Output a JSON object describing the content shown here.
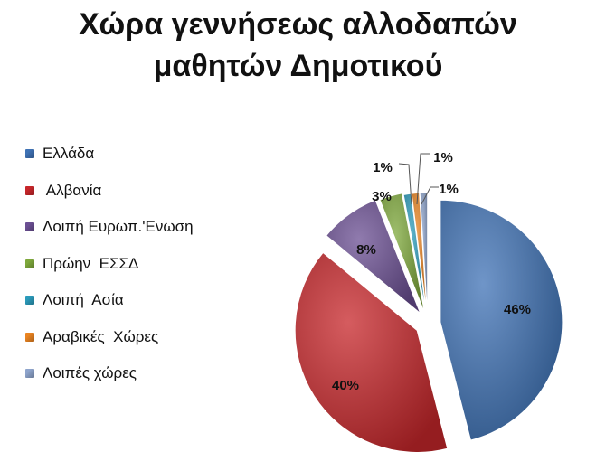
{
  "title_line1": "Χώρα γεννήσεως αλλοδαπών",
  "title_line2": "μαθητών Δημοτικού",
  "chart_data": {
    "type": "pie",
    "title": "Χώρα γεννήσεως αλλοδαπών μαθητών Δημοτικού",
    "legend_position": "left",
    "slices": [
      {
        "label": "Ελλάδα",
        "value": 46,
        "display": "46%",
        "color": "#3f72b5"
      },
      {
        "label": " Αλβανία",
        "value": 40,
        "display": "40%",
        "color": "#c7262a"
      },
      {
        "label": "Λοιπή Ευρωπ.'Ενωση",
        "value": 8,
        "display": "8%",
        "color": "#6b4f93"
      },
      {
        "label": "Πρώην  ΕΣΣΔ",
        "value": 3,
        "display": "3%",
        "color": "#7ea83b"
      },
      {
        "label": "Λοιπή  Ασία",
        "value": 1,
        "display": "1%",
        "color": "#2b9bbb"
      },
      {
        "label": "Αραβικές  Χώρες",
        "value": 1,
        "display": "1%",
        "color": "#ea8421"
      },
      {
        "label": "Λοιπές χώρες",
        "value": 1,
        "display": "1%",
        "color": "#8ea4cc"
      }
    ]
  }
}
